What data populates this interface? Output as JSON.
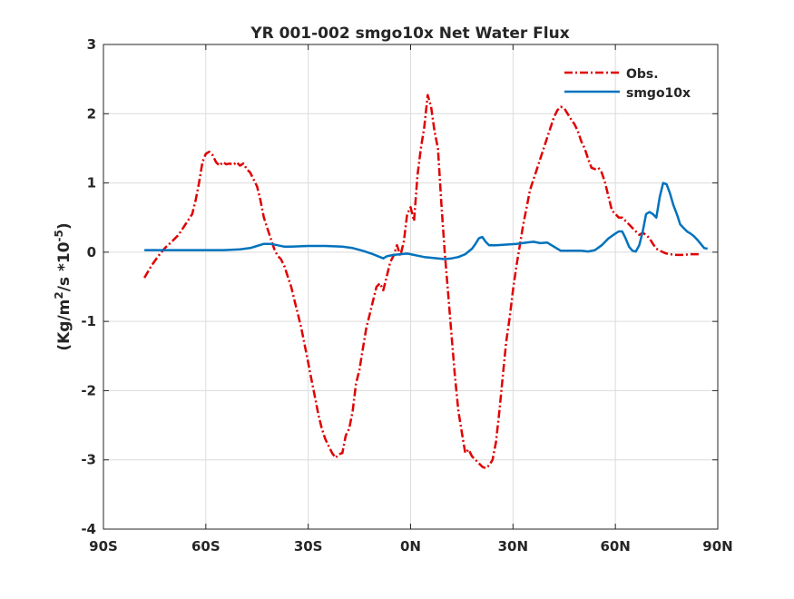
{
  "chart_data": {
    "type": "line",
    "title": "YR 001-002 smgo10x  Net Water Flux",
    "xlabel": "",
    "ylabel_parts": {
      "a": "(Kg/m",
      "sup1": "2",
      "b": "/s *10",
      "sup2": "-5",
      "c": ")"
    },
    "xlim": [
      -90,
      90
    ],
    "ylim": [
      -4,
      3
    ],
    "xticks": [
      {
        "value": -90,
        "label": "90S"
      },
      {
        "value": -60,
        "label": "60S"
      },
      {
        "value": -30,
        "label": "30S"
      },
      {
        "value": 0,
        "label": "0N"
      },
      {
        "value": 30,
        "label": "30N"
      },
      {
        "value": 60,
        "label": "60N"
      },
      {
        "value": 90,
        "label": "90N"
      }
    ],
    "yticks": [
      {
        "value": 3,
        "label": "3"
      },
      {
        "value": 2,
        "label": "2"
      },
      {
        "value": 1,
        "label": "1"
      },
      {
        "value": 0,
        "label": "0"
      },
      {
        "value": -1,
        "label": "-1"
      },
      {
        "value": -2,
        "label": "-2"
      },
      {
        "value": -3,
        "label": "-3"
      },
      {
        "value": -4,
        "label": "-4"
      }
    ],
    "grid": true,
    "legend_position": "top-right",
    "series": [
      {
        "name": "Obs.",
        "color": "#e00000",
        "style": "dash-dot",
        "points": [
          [
            -78,
            -0.37
          ],
          [
            -76,
            -0.2
          ],
          [
            -74,
            -0.06
          ],
          [
            -72,
            0.06
          ],
          [
            -70,
            0.15
          ],
          [
            -68,
            0.25
          ],
          [
            -66,
            0.4
          ],
          [
            -64,
            0.55
          ],
          [
            -63,
            0.75
          ],
          [
            -62,
            1.0
          ],
          [
            -61,
            1.3
          ],
          [
            -60,
            1.42
          ],
          [
            -59,
            1.45
          ],
          [
            -58,
            1.4
          ],
          [
            -57,
            1.3
          ],
          [
            -56,
            1.25
          ],
          [
            -55,
            1.3
          ],
          [
            -54,
            1.27
          ],
          [
            -53,
            1.28
          ],
          [
            -52,
            1.26
          ],
          [
            -51,
            1.3
          ],
          [
            -50,
            1.25
          ],
          [
            -49,
            1.28
          ],
          [
            -48,
            1.2
          ],
          [
            -47,
            1.15
          ],
          [
            -46,
            1.05
          ],
          [
            -45,
            0.95
          ],
          [
            -44,
            0.75
          ],
          [
            -43,
            0.5
          ],
          [
            -42,
            0.35
          ],
          [
            -41,
            0.2
          ],
          [
            -40,
            0.05
          ],
          [
            -39,
            -0.05
          ],
          [
            -38,
            -0.1
          ],
          [
            -37,
            -0.2
          ],
          [
            -36,
            -0.35
          ],
          [
            -35,
            -0.5
          ],
          [
            -34,
            -0.7
          ],
          [
            -33,
            -0.9
          ],
          [
            -32,
            -1.1
          ],
          [
            -31,
            -1.35
          ],
          [
            -30,
            -1.6
          ],
          [
            -29,
            -1.85
          ],
          [
            -28,
            -2.1
          ],
          [
            -27,
            -2.35
          ],
          [
            -26,
            -2.55
          ],
          [
            -25,
            -2.7
          ],
          [
            -24,
            -2.8
          ],
          [
            -23,
            -2.9
          ],
          [
            -22,
            -2.97
          ],
          [
            -21,
            -2.92
          ],
          [
            -20,
            -2.9
          ],
          [
            -19,
            -2.65
          ],
          [
            -18,
            -2.55
          ],
          [
            -17,
            -2.3
          ],
          [
            -16,
            -1.9
          ],
          [
            -15,
            -1.7
          ],
          [
            -14,
            -1.4
          ],
          [
            -13,
            -1.1
          ],
          [
            -12,
            -0.9
          ],
          [
            -11,
            -0.7
          ],
          [
            -10,
            -0.5
          ],
          [
            -9,
            -0.45
          ],
          [
            -8,
            -0.55
          ],
          [
            -7,
            -0.35
          ],
          [
            -6,
            -0.15
          ],
          [
            -5,
            -0.05
          ],
          [
            -4,
            0.1
          ],
          [
            -3,
            -0.05
          ],
          [
            -2,
            0.15
          ],
          [
            -1,
            0.55
          ],
          [
            0,
            0.65
          ],
          [
            1,
            0.45
          ],
          [
            2,
            1.1
          ],
          [
            3,
            1.5
          ],
          [
            4,
            1.8
          ],
          [
            5,
            2.27
          ],
          [
            6,
            2.1
          ],
          [
            7,
            1.75
          ],
          [
            8,
            1.5
          ],
          [
            9,
            0.7
          ],
          [
            10,
            0.0
          ],
          [
            11,
            -0.6
          ],
          [
            12,
            -1.2
          ],
          [
            13,
            -1.8
          ],
          [
            14,
            -2.3
          ],
          [
            15,
            -2.6
          ],
          [
            16,
            -2.9
          ],
          [
            17,
            -2.85
          ],
          [
            18,
            -2.95
          ],
          [
            19,
            -3.0
          ],
          [
            20,
            -3.05
          ],
          [
            21,
            -3.1
          ],
          [
            22,
            -3.12
          ],
          [
            23,
            -3.08
          ],
          [
            24,
            -3.0
          ],
          [
            25,
            -2.75
          ],
          [
            26,
            -2.3
          ],
          [
            27,
            -1.8
          ],
          [
            28,
            -1.3
          ],
          [
            29,
            -0.95
          ],
          [
            30,
            -0.55
          ],
          [
            31,
            -0.2
          ],
          [
            32,
            0.1
          ],
          [
            33,
            0.4
          ],
          [
            34,
            0.65
          ],
          [
            35,
            0.9
          ],
          [
            36,
            1.05
          ],
          [
            37,
            1.2
          ],
          [
            38,
            1.35
          ],
          [
            39,
            1.5
          ],
          [
            40,
            1.65
          ],
          [
            41,
            1.8
          ],
          [
            42,
            1.95
          ],
          [
            43,
            2.05
          ],
          [
            44,
            2.1
          ],
          [
            45,
            2.08
          ],
          [
            46,
            2.0
          ],
          [
            47,
            1.92
          ],
          [
            48,
            1.85
          ],
          [
            49,
            1.75
          ],
          [
            50,
            1.6
          ],
          [
            51,
            1.5
          ],
          [
            52,
            1.35
          ],
          [
            53,
            1.22
          ],
          [
            54,
            1.2
          ],
          [
            55,
            1.22
          ],
          [
            56,
            1.15
          ],
          [
            57,
            1.0
          ],
          [
            58,
            0.8
          ],
          [
            59,
            0.6
          ],
          [
            60,
            0.55
          ],
          [
            61,
            0.5
          ],
          [
            62,
            0.5
          ],
          [
            63,
            0.45
          ],
          [
            64,
            0.4
          ],
          [
            65,
            0.35
          ],
          [
            66,
            0.3
          ],
          [
            67,
            0.25
          ],
          [
            68,
            0.28
          ],
          [
            69,
            0.25
          ],
          [
            70,
            0.2
          ],
          [
            71,
            0.12
          ],
          [
            72,
            0.05
          ],
          [
            73,
            0.02
          ],
          [
            74,
            0.0
          ],
          [
            75,
            -0.02
          ],
          [
            76,
            -0.03
          ],
          [
            78,
            -0.04
          ],
          [
            80,
            -0.04
          ],
          [
            82,
            -0.03
          ],
          [
            85,
            -0.03
          ]
        ]
      },
      {
        "name": "smgo10x",
        "color": "#0072bd",
        "style": "solid",
        "points": [
          [
            -78,
            0.03
          ],
          [
            -70,
            0.03
          ],
          [
            -60,
            0.03
          ],
          [
            -55,
            0.03
          ],
          [
            -50,
            0.04
          ],
          [
            -47,
            0.06
          ],
          [
            -45,
            0.09
          ],
          [
            -43,
            0.12
          ],
          [
            -41,
            0.12
          ],
          [
            -39,
            0.1
          ],
          [
            -37,
            0.08
          ],
          [
            -35,
            0.08
          ],
          [
            -30,
            0.09
          ],
          [
            -25,
            0.09
          ],
          [
            -20,
            0.08
          ],
          [
            -17,
            0.06
          ],
          [
            -14,
            0.02
          ],
          [
            -11,
            -0.03
          ],
          [
            -9,
            -0.07
          ],
          [
            -8,
            -0.09
          ],
          [
            -7,
            -0.06
          ],
          [
            -5,
            -0.04
          ],
          [
            -3,
            -0.03
          ],
          [
            -1,
            -0.02
          ],
          [
            0,
            -0.03
          ],
          [
            2,
            -0.05
          ],
          [
            4,
            -0.07
          ],
          [
            6,
            -0.08
          ],
          [
            8,
            -0.09
          ],
          [
            10,
            -0.1
          ],
          [
            12,
            -0.09
          ],
          [
            14,
            -0.07
          ],
          [
            16,
            -0.03
          ],
          [
            18,
            0.05
          ],
          [
            19,
            0.12
          ],
          [
            20,
            0.2
          ],
          [
            21,
            0.22
          ],
          [
            22,
            0.15
          ],
          [
            23,
            0.1
          ],
          [
            25,
            0.1
          ],
          [
            28,
            0.11
          ],
          [
            31,
            0.12
          ],
          [
            34,
            0.14
          ],
          [
            36,
            0.15
          ],
          [
            38,
            0.13
          ],
          [
            40,
            0.14
          ],
          [
            42,
            0.08
          ],
          [
            44,
            0.02
          ],
          [
            46,
            0.02
          ],
          [
            48,
            0.02
          ],
          [
            50,
            0.02
          ],
          [
            52,
            0.01
          ],
          [
            54,
            0.03
          ],
          [
            56,
            0.1
          ],
          [
            58,
            0.2
          ],
          [
            60,
            0.27
          ],
          [
            61,
            0.3
          ],
          [
            62,
            0.3
          ],
          [
            63,
            0.2
          ],
          [
            64,
            0.08
          ],
          [
            65,
            0.02
          ],
          [
            66,
            0.01
          ],
          [
            67,
            0.1
          ],
          [
            68,
            0.3
          ],
          [
            69,
            0.55
          ],
          [
            70,
            0.58
          ],
          [
            71,
            0.55
          ],
          [
            72,
            0.5
          ],
          [
            73,
            0.8
          ],
          [
            74,
            1.0
          ],
          [
            75,
            0.98
          ],
          [
            76,
            0.85
          ],
          [
            77,
            0.68
          ],
          [
            78,
            0.55
          ],
          [
            79,
            0.4
          ],
          [
            80,
            0.35
          ],
          [
            81,
            0.3
          ],
          [
            82,
            0.27
          ],
          [
            83,
            0.23
          ],
          [
            84,
            0.18
          ],
          [
            85,
            0.12
          ],
          [
            86,
            0.06
          ],
          [
            87,
            0.05
          ]
        ]
      }
    ]
  }
}
